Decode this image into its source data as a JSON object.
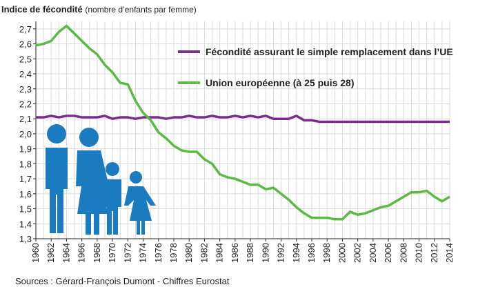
{
  "chart_data": {
    "type": "line",
    "title": "Indice de fécondité",
    "subtitle": "(nombre d’enfants par femme)",
    "source": "Sources : Gérard-François Dumont - Chiffres Eurostat",
    "x": [
      1960,
      1961,
      1962,
      1963,
      1964,
      1965,
      1966,
      1967,
      1968,
      1969,
      1970,
      1971,
      1972,
      1973,
      1974,
      1975,
      1976,
      1977,
      1978,
      1979,
      1980,
      1981,
      1982,
      1983,
      1984,
      1985,
      1986,
      1987,
      1988,
      1989,
      1990,
      1991,
      1992,
      1993,
      1994,
      1995,
      1996,
      1997,
      1998,
      1999,
      2000,
      2001,
      2002,
      2003,
      2004,
      2005,
      2006,
      2007,
      2008,
      2009,
      2010,
      2011,
      2012,
      2013,
      2014
    ],
    "xlim": [
      1960,
      2014
    ],
    "xticks": [
      1960,
      1962,
      1964,
      1966,
      1968,
      1970,
      1972,
      1974,
      1976,
      1978,
      1980,
      1982,
      1984,
      1986,
      1988,
      1990,
      1992,
      1994,
      1996,
      1998,
      2000,
      2002,
      2004,
      2006,
      2008,
      2010,
      2012,
      2014
    ],
    "ylim": [
      1.3,
      2.75
    ],
    "yticks": [
      {
        "value": 1.3,
        "label": "1,3"
      },
      {
        "value": 1.4,
        "label": "1,4"
      },
      {
        "value": 1.5,
        "label": "1,5"
      },
      {
        "value": 1.6,
        "label": "1,6"
      },
      {
        "value": 1.7,
        "label": "1,7"
      },
      {
        "value": 1.8,
        "label": "1,8"
      },
      {
        "value": 1.9,
        "label": "1,9"
      },
      {
        "value": 2.0,
        "label": "2,0"
      },
      {
        "value": 2.1,
        "label": "2,1"
      },
      {
        "value": 2.2,
        "label": "2,2"
      },
      {
        "value": 2.3,
        "label": "2,3"
      },
      {
        "value": 2.4,
        "label": "2,4"
      },
      {
        "value": 2.5,
        "label": "2,5"
      },
      {
        "value": 2.6,
        "label": "2,6"
      },
      {
        "value": 2.7,
        "label": "2,7"
      }
    ],
    "grid": true,
    "series": [
      {
        "name": "Fécondité assurant le simple remplacement dans l’UE",
        "color": "#7b2d8e",
        "values": [
          2.11,
          2.11,
          2.12,
          2.11,
          2.12,
          2.12,
          2.11,
          2.11,
          2.11,
          2.12,
          2.1,
          2.11,
          2.11,
          2.1,
          2.11,
          2.11,
          2.11,
          2.1,
          2.11,
          2.11,
          2.12,
          2.11,
          2.11,
          2.12,
          2.11,
          2.11,
          2.12,
          2.11,
          2.12,
          2.11,
          2.12,
          2.1,
          2.1,
          2.1,
          2.12,
          2.09,
          2.09,
          2.08,
          2.08,
          2.08,
          2.08,
          2.08,
          2.08,
          2.08,
          2.08,
          2.08,
          2.08,
          2.08,
          2.08,
          2.08,
          2.08,
          2.08,
          2.08,
          2.08,
          2.08
        ]
      },
      {
        "name": "Union européenne (à 25 puis 28)",
        "color": "#5cb946",
        "values": [
          2.59,
          2.6,
          2.62,
          2.68,
          2.72,
          2.67,
          2.62,
          2.57,
          2.53,
          2.46,
          2.41,
          2.34,
          2.33,
          2.22,
          2.14,
          2.09,
          2.01,
          1.97,
          1.92,
          1.89,
          1.88,
          1.88,
          1.83,
          1.8,
          1.73,
          1.71,
          1.7,
          1.68,
          1.66,
          1.66,
          1.63,
          1.64,
          1.6,
          1.56,
          1.51,
          1.47,
          1.44,
          1.44,
          1.44,
          1.43,
          1.43,
          1.48,
          1.46,
          1.47,
          1.49,
          1.51,
          1.52,
          1.55,
          1.58,
          1.61,
          1.61,
          1.62,
          1.58,
          1.55,
          1.58
        ]
      }
    ]
  }
}
